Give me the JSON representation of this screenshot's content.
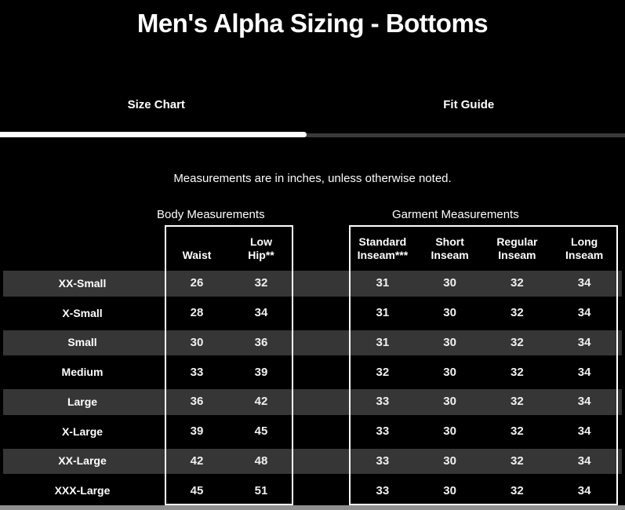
{
  "page": {
    "title": "Men's Alpha Sizing - Bottoms",
    "note": "Measurements are in inches, unless otherwise noted."
  },
  "tabs": [
    {
      "label": "Size Chart",
      "active": true
    },
    {
      "label": "Fit Guide",
      "active": false
    }
  ],
  "sections": {
    "body_label": "Body Measurements",
    "garment_label": "Garment Measurements"
  },
  "columns": {
    "body": [
      "Waist",
      "Low Hip**"
    ],
    "garment": [
      "Standard Inseam***",
      "Short Inseam",
      "Regular Inseam",
      "Long Inseam"
    ]
  },
  "colors": {
    "background": "#000000",
    "stripe_row": "#363636",
    "active_tab_bar": "#ffffff",
    "inactive_tab_bar": "#3a3a3a",
    "table_border": "#ffffff",
    "scrollbar": "#909090"
  },
  "table": {
    "rows": [
      {
        "size": "XX-Small",
        "waist": "26",
        "low_hip": "32",
        "standard_inseam": "31",
        "short_inseam": "30",
        "regular_inseam": "32",
        "long_inseam": "34"
      },
      {
        "size": "X-Small",
        "waist": "28",
        "low_hip": "34",
        "standard_inseam": "31",
        "short_inseam": "30",
        "regular_inseam": "32",
        "long_inseam": "34"
      },
      {
        "size": "Small",
        "waist": "30",
        "low_hip": "36",
        "standard_inseam": "31",
        "short_inseam": "30",
        "regular_inseam": "32",
        "long_inseam": "34"
      },
      {
        "size": "Medium",
        "waist": "33",
        "low_hip": "39",
        "standard_inseam": "32",
        "short_inseam": "30",
        "regular_inseam": "32",
        "long_inseam": "34"
      },
      {
        "size": "Large",
        "waist": "36",
        "low_hip": "42",
        "standard_inseam": "33",
        "short_inseam": "30",
        "regular_inseam": "32",
        "long_inseam": "34"
      },
      {
        "size": "X-Large",
        "waist": "39",
        "low_hip": "45",
        "standard_inseam": "33",
        "short_inseam": "30",
        "regular_inseam": "32",
        "long_inseam": "34"
      },
      {
        "size": "XX-Large",
        "waist": "42",
        "low_hip": "48",
        "standard_inseam": "33",
        "short_inseam": "30",
        "regular_inseam": "32",
        "long_inseam": "34"
      },
      {
        "size": "XXX-Large",
        "waist": "45",
        "low_hip": "51",
        "standard_inseam": "33",
        "short_inseam": "30",
        "regular_inseam": "32",
        "long_inseam": "34"
      }
    ]
  }
}
